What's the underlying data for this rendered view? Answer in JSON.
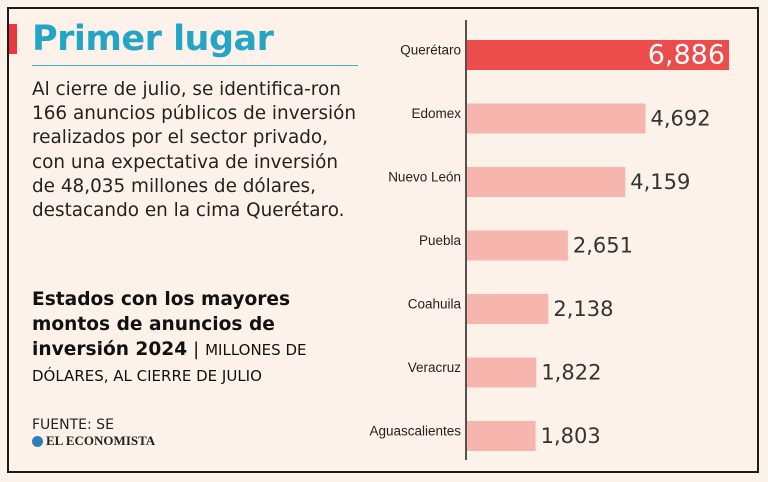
{
  "colors": {
    "accent": "#e8393f",
    "title": "#25a5c5",
    "bar_highlight": "#ec4c4c",
    "bar_normal": "#f6b6ae",
    "axis": "#1c1c1c"
  },
  "header": {
    "title": "Primer lugar"
  },
  "body": {
    "paragraph": "Al cierre de julio, se identifica-ron 166 anuncios públicos de inversión realizados por el sector privado, con una expectativa de inversión de 48,035 millones de dólares, destacando en la cima Querétaro."
  },
  "subtitle": {
    "bold": "Estados con los mayores montos de anuncios de inversión 2024",
    "separator": "|",
    "unit": "Millones de dólares, al cierre de julio"
  },
  "source": {
    "text": "FUENTE: SE",
    "logo": "EL ECONOMISTA"
  },
  "chart_data": {
    "type": "bar",
    "orientation": "horizontal",
    "categories": [
      "Querétaro",
      "Edomex",
      "Nuevo León",
      "Puebla",
      "Coahuila",
      "Veracruz",
      "Aguascalientes"
    ],
    "values": [
      6886,
      4692,
      4159,
      2651,
      2138,
      1822,
      1803
    ],
    "value_labels": [
      "6,886",
      "4,692",
      "4,159",
      "2,651",
      "2,138",
      "1,822",
      "1,803"
    ],
    "highlight_index": 0,
    "xlim": [
      0,
      6886
    ],
    "grid": false,
    "legend": "none"
  }
}
